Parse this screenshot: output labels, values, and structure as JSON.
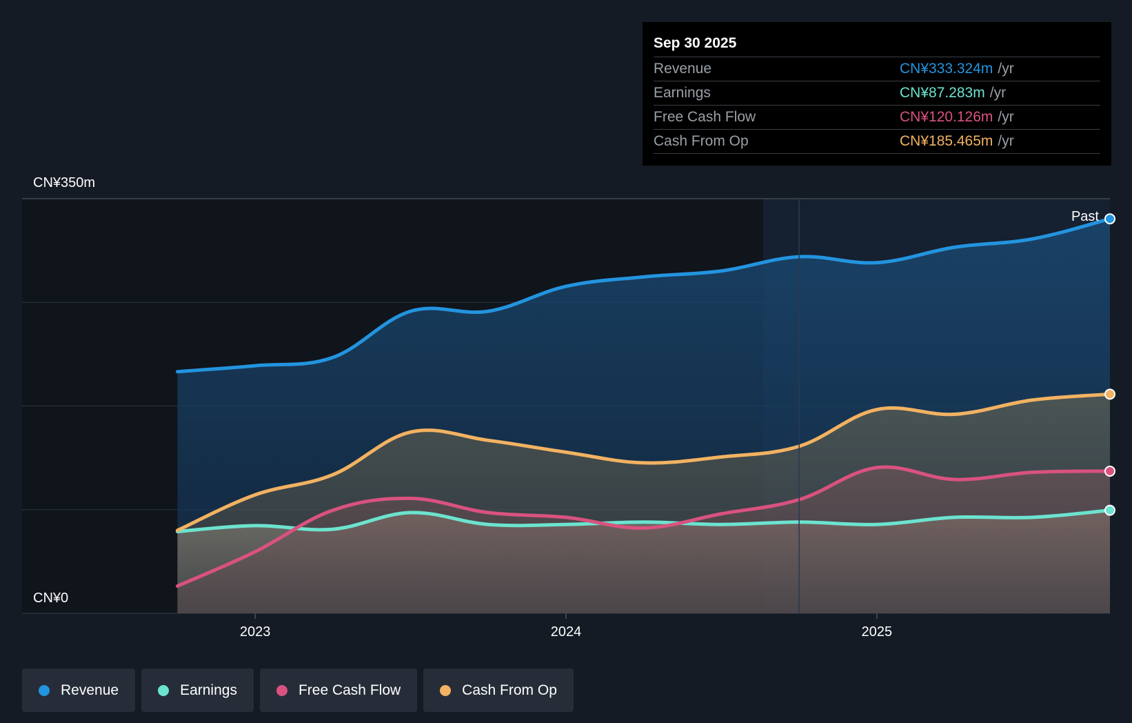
{
  "tooltip": {
    "date": "Sep 30 2025",
    "rows": [
      {
        "label": "Revenue",
        "value": "CN¥333.324m",
        "unit": "/yr",
        "color": "#2394df"
      },
      {
        "label": "Earnings",
        "value": "CN¥87.283m",
        "unit": "/yr",
        "color": "#6ce3cf"
      },
      {
        "label": "Free Cash Flow",
        "value": "CN¥120.126m",
        "unit": "/yr",
        "color": "#d9527f"
      },
      {
        "label": "Cash From Op",
        "value": "CN¥185.465m",
        "unit": "/yr",
        "color": "#f2b262"
      }
    ]
  },
  "legend": [
    {
      "label": "Revenue",
      "color": "#2394df"
    },
    {
      "label": "Earnings",
      "color": "#6ce3cf"
    },
    {
      "label": "Free Cash Flow",
      "color": "#d9527f"
    },
    {
      "label": "Cash From Op",
      "color": "#f2b262"
    }
  ],
  "chart_data": {
    "type": "area",
    "title": "",
    "xlabel": "",
    "ylabel": "",
    "ylim": [
      0,
      350
    ],
    "x_range": [
      2022.25,
      2025.75
    ],
    "y_tick_labels": {
      "top": "CN¥350m",
      "bottom": "CN¥0"
    },
    "x_ticks": [
      {
        "value": 2023,
        "label": "2023"
      },
      {
        "value": 2024,
        "label": "2024"
      },
      {
        "value": 2025,
        "label": "2025"
      }
    ],
    "past_label": "Past",
    "past_divider_x": 2024.75,
    "series": [
      {
        "name": "Revenue",
        "color": "#2394df",
        "x": [
          2022.75,
          2023.0,
          2023.25,
          2023.5,
          2023.75,
          2024.0,
          2024.25,
          2024.5,
          2024.75,
          2025.0,
          2025.25,
          2025.5,
          2025.75
        ],
        "values": [
          204,
          209,
          216,
          255,
          255,
          276,
          284,
          289,
          301,
          296,
          309,
          316,
          333
        ]
      },
      {
        "name": "Earnings",
        "color": "#6ce3cf",
        "x": [
          2022.75,
          2023.0,
          2023.25,
          2023.5,
          2023.75,
          2024.0,
          2024.25,
          2024.5,
          2024.75,
          2025.0,
          2025.25,
          2025.5,
          2025.75
        ],
        "values": [
          69,
          74,
          71,
          85,
          75,
          75,
          77,
          75,
          77,
          75,
          81,
          81,
          87
        ]
      },
      {
        "name": "Free Cash Flow",
        "color": "#d9527f",
        "x": [
          2022.75,
          2023.0,
          2023.25,
          2023.5,
          2023.75,
          2024.0,
          2024.25,
          2024.5,
          2024.75,
          2025.0,
          2025.25,
          2025.5,
          2025.75
        ],
        "values": [
          23,
          52,
          87,
          97,
          85,
          81,
          72,
          84,
          96,
          123,
          113,
          119,
          120
        ]
      },
      {
        "name": "Cash From Op",
        "color": "#f2b262",
        "x": [
          2022.75,
          2023.0,
          2023.25,
          2023.5,
          2023.75,
          2024.0,
          2024.25,
          2024.5,
          2024.75,
          2025.0,
          2025.25,
          2025.5,
          2025.75
        ],
        "values": [
          70,
          100,
          117,
          153,
          146,
          136,
          127,
          132,
          141,
          172,
          168,
          180,
          185
        ]
      }
    ]
  }
}
